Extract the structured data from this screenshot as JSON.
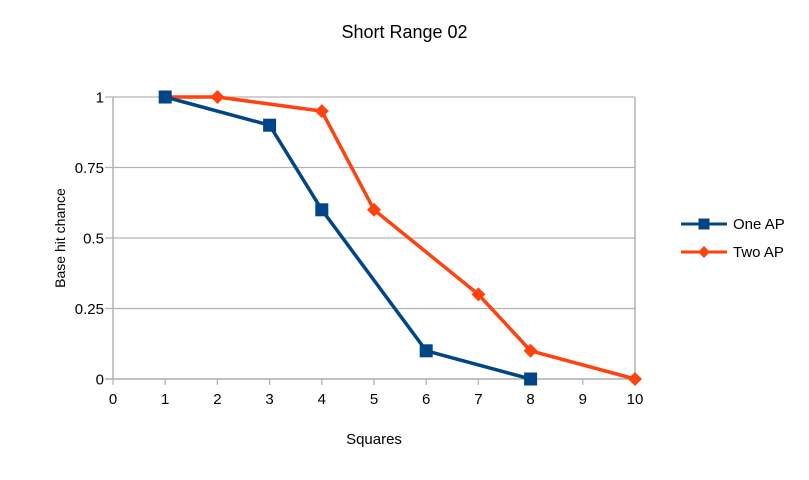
{
  "chart_data": {
    "type": "line",
    "title": "Short Range 02",
    "xlabel": "Squares",
    "ylabel": "Base hit chance",
    "xlim": [
      0,
      10
    ],
    "ylim": [
      0,
      1
    ],
    "x_ticks": [
      0,
      1,
      2,
      3,
      4,
      5,
      6,
      7,
      8,
      9,
      10
    ],
    "y_ticks": [
      0,
      0.25,
      0.5,
      0.75,
      1
    ],
    "y_tick_labels": [
      "0",
      "0.25",
      "0.5",
      "0.75",
      "1"
    ],
    "grid": "horizontal-only",
    "legend_position": "right",
    "series": [
      {
        "name": "One AP",
        "color": "#004586",
        "marker": "square",
        "points": [
          [
            1,
            1
          ],
          [
            3,
            0.9
          ],
          [
            4,
            0.6
          ],
          [
            6,
            0.1
          ],
          [
            8,
            0
          ]
        ]
      },
      {
        "name": "Two AP",
        "color": "#FF420E",
        "marker": "diamond",
        "points": [
          [
            1,
            1
          ],
          [
            2,
            1
          ],
          [
            4,
            0.95
          ],
          [
            5,
            0.6
          ],
          [
            7,
            0.3
          ],
          [
            8,
            0.1
          ],
          [
            10,
            0
          ]
        ]
      }
    ],
    "colors": {
      "grid": "#B3B3B3",
      "axis": "#B3B3B3",
      "text": "#000000",
      "background": "#FFFFFF"
    }
  }
}
